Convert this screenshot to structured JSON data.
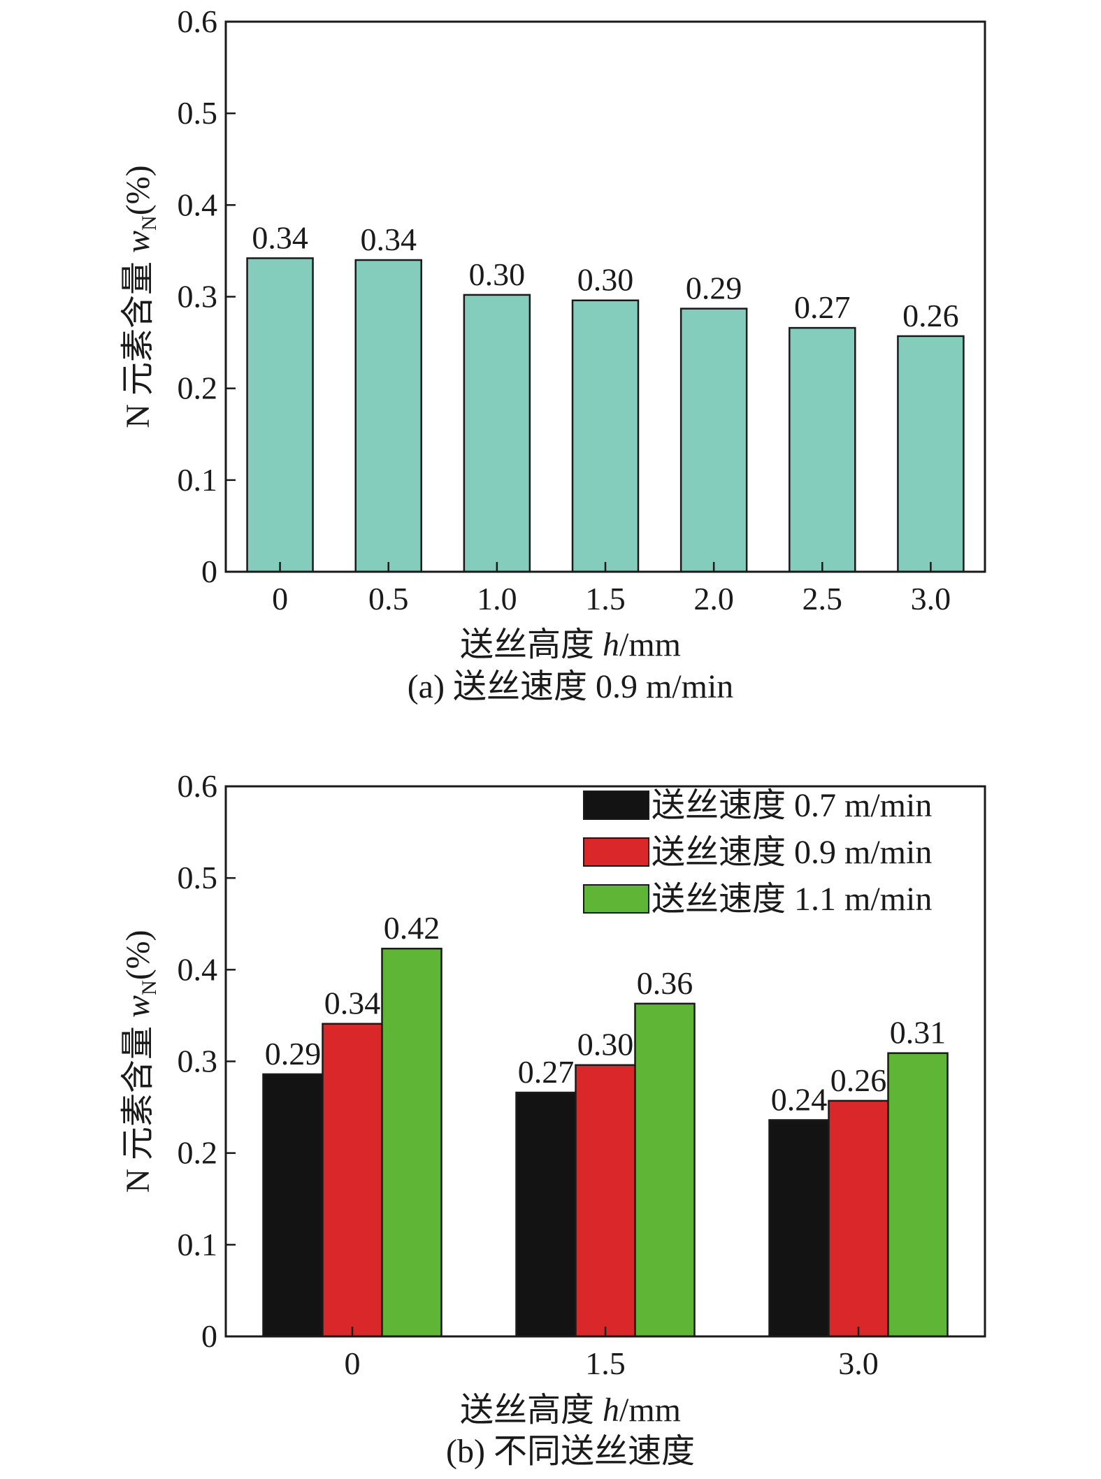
{
  "chart_data": [
    {
      "type": "bar",
      "caption": "(a) 送丝速度 0.9 m/min",
      "xlabel": "送丝高度 h/mm",
      "xlabel_parts": [
        "送丝高度 ",
        "h",
        "/mm"
      ],
      "ylabel_parts": [
        "N 元素含量 ",
        "w",
        "N",
        "(%)"
      ],
      "ylim": [
        0,
        0.6
      ],
      "yticks": [
        "0",
        "0.1",
        "0.2",
        "0.3",
        "0.4",
        "0.5",
        "0.6"
      ],
      "categories": [
        "0",
        "0.5",
        "1.0",
        "1.5",
        "2.0",
        "2.5",
        "3.0"
      ],
      "series": [
        {
          "name": "送丝速度 0.9 m/min",
          "color": "#84cdbd",
          "values": [
            0.342,
            0.34,
            0.302,
            0.296,
            0.287,
            0.266,
            0.257
          ],
          "labels": [
            "0.34",
            "0.34",
            "0.30",
            "0.30",
            "0.29",
            "0.27",
            "0.26"
          ]
        }
      ],
      "legend": null
    },
    {
      "type": "bar",
      "caption": "(b) 不同送丝速度",
      "xlabel": "送丝高度 h/mm",
      "xlabel_parts": [
        "送丝高度 ",
        "h",
        "/mm"
      ],
      "ylabel_parts": [
        "N 元素含量 ",
        "w",
        "N",
        "(%)"
      ],
      "ylim": [
        0,
        0.6
      ],
      "yticks": [
        "0",
        "0.1",
        "0.2",
        "0.3",
        "0.4",
        "0.5",
        "0.6"
      ],
      "categories": [
        "0",
        "1.5",
        "3.0"
      ],
      "series": [
        {
          "name": "送丝速度 0.7 m/min",
          "color": "#131313",
          "values": [
            0.286,
            0.266,
            0.236
          ],
          "labels": [
            "0.29",
            "0.27",
            "0.24"
          ]
        },
        {
          "name": "送丝速度 0.9 m/min",
          "color": "#d9272a",
          "values": [
            0.341,
            0.296,
            0.257
          ],
          "labels": [
            "0.34",
            "0.30",
            "0.26"
          ]
        },
        {
          "name": "送丝速度 1.1 m/min",
          "color": "#5fb535",
          "values": [
            0.423,
            0.363,
            0.309
          ],
          "labels": [
            "0.42",
            "0.36",
            "0.31"
          ]
        }
      ],
      "legend": "top-right"
    }
  ]
}
